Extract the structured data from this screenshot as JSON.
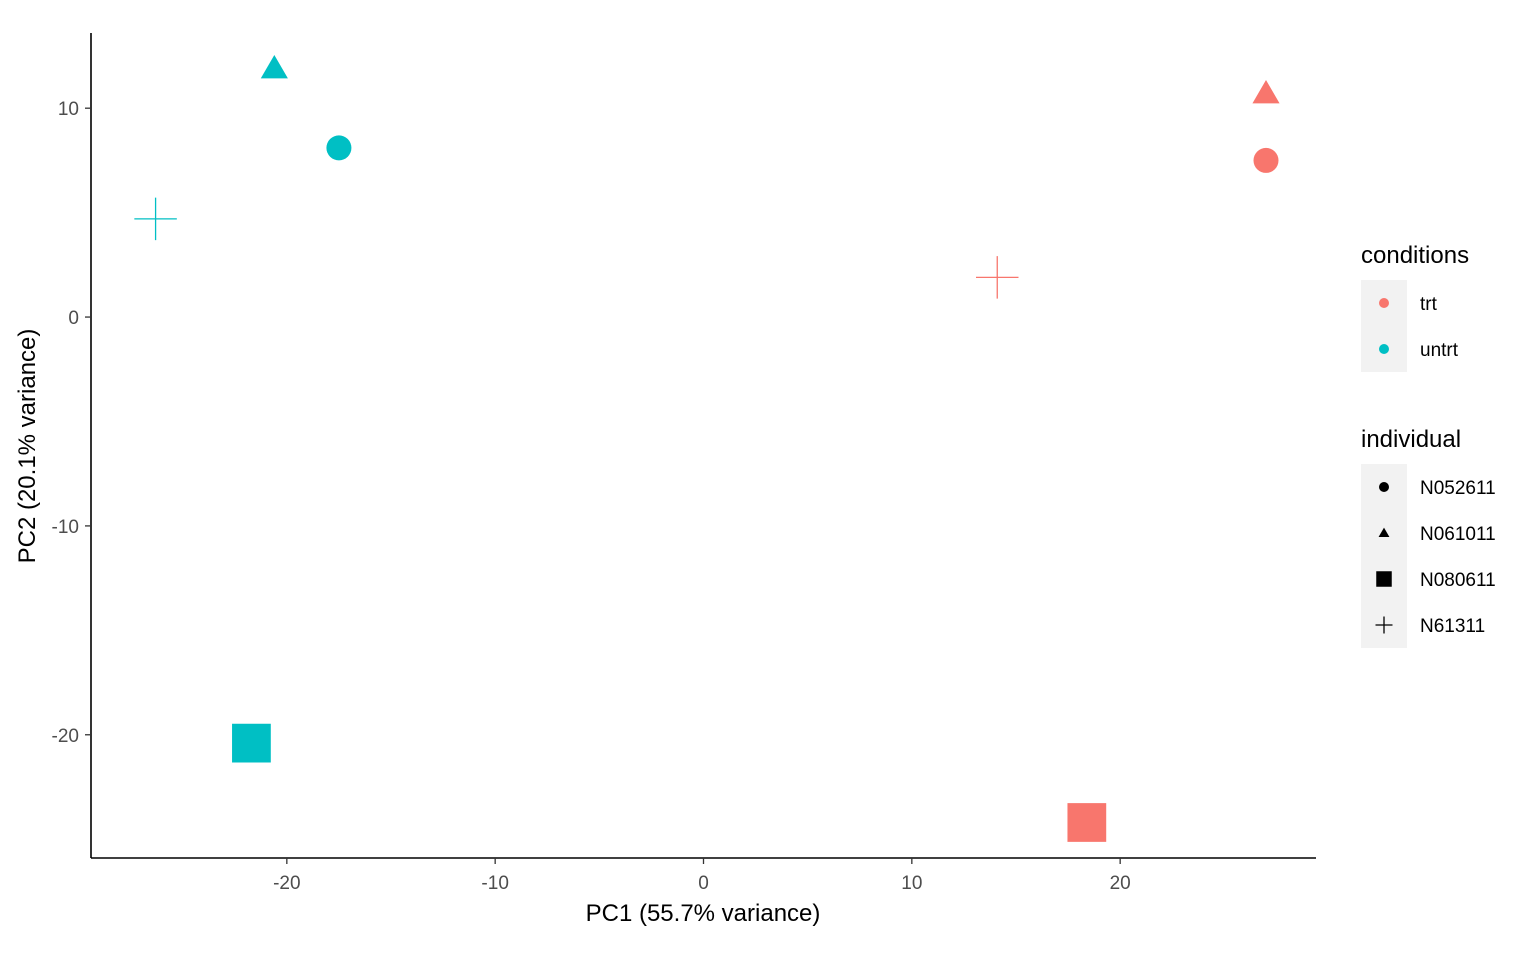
{
  "chart_data": {
    "type": "scatter",
    "title": "",
    "xlabel": "PC1 (55.7% variance)",
    "ylabel": "PC2 (20.1% variance)",
    "xlim": [
      -29.4,
      29.4
    ],
    "ylim": [
      -25.9,
      13.6
    ],
    "xticks": [
      -20,
      -10,
      0,
      10,
      20
    ],
    "yticks": [
      -20,
      -10,
      0,
      10
    ],
    "grid": false,
    "legend_position": "right",
    "legends": [
      {
        "title": "conditions",
        "entries": [
          {
            "label": "trt",
            "color": "#F8766D"
          },
          {
            "label": "untrt",
            "color": "#00BFC4"
          }
        ]
      },
      {
        "title": "individual",
        "entries": [
          {
            "label": "N052611",
            "shape": "circle"
          },
          {
            "label": "N061011",
            "shape": "triangle"
          },
          {
            "label": "N080611",
            "shape": "square"
          },
          {
            "label": "N61311",
            "shape": "plus"
          }
        ]
      }
    ],
    "points": [
      {
        "x": -20.6,
        "y": 11.9,
        "conditions": "untrt",
        "individual": "N061011"
      },
      {
        "x": -17.5,
        "y": 8.1,
        "conditions": "untrt",
        "individual": "N052611"
      },
      {
        "x": -26.3,
        "y": 4.7,
        "conditions": "untrt",
        "individual": "N61311"
      },
      {
        "x": -21.7,
        "y": -20.4,
        "conditions": "untrt",
        "individual": "N080611"
      },
      {
        "x": 27.0,
        "y": 10.7,
        "conditions": "trt",
        "individual": "N061011"
      },
      {
        "x": 27.0,
        "y": 7.5,
        "conditions": "trt",
        "individual": "N052611"
      },
      {
        "x": 14.1,
        "y": 1.9,
        "conditions": "trt",
        "individual": "N61311"
      },
      {
        "x": 18.4,
        "y": -24.2,
        "conditions": "trt",
        "individual": "N080611"
      }
    ]
  }
}
